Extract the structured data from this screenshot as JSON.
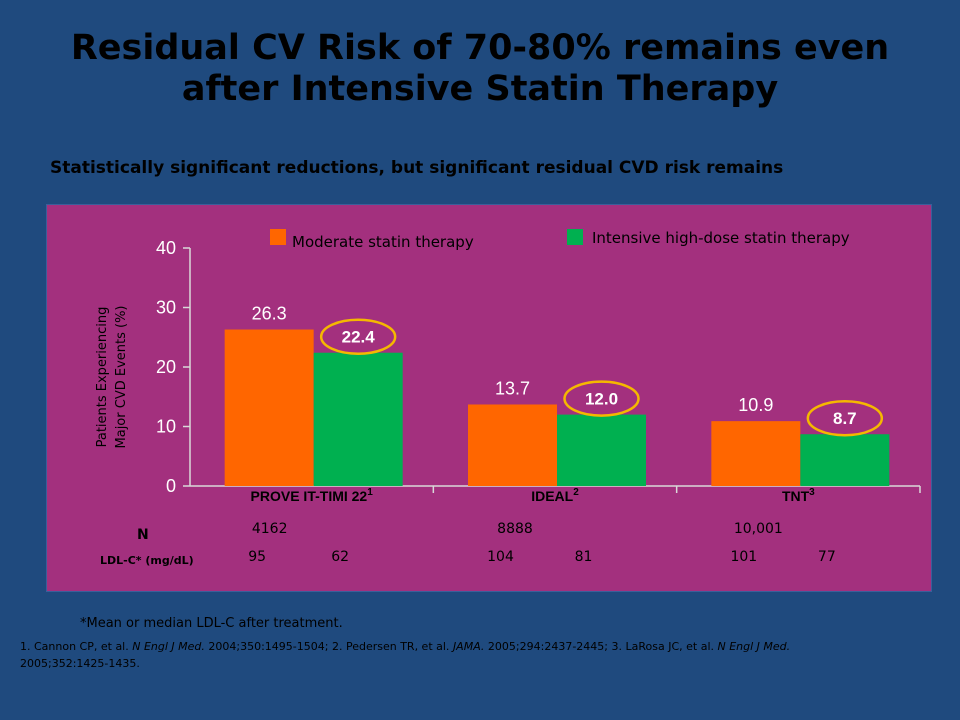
{
  "title": {
    "line1": "Residual CV Risk of 70-80% remains even",
    "line2": "after Intensive Statin Therapy"
  },
  "subtitle": "Statistically significant reductions, but significant residual CVD risk remains",
  "footnote": "*Mean or median LDL-C after treatment.",
  "references": {
    "r1_pre": "1. Cannon CP, et al. ",
    "r1_journal": "N Engl J Med.",
    "r1_post": " 2004;350:1495-1504; 2. Pedersen TR, et al. ",
    "r2_journal": "JAMA.",
    "r2_post": " 2005;294:2437-2445; 3. LaRosa JC, et al. ",
    "r3_journal": "N Engl J Med.",
    "r3_post": " 2005;352:1425-1435."
  },
  "table": {
    "n_label": "N",
    "ldl_label": "LDL-C* (mg/dL)",
    "n_values": [
      "4162",
      "8888",
      "10,001"
    ],
    "ldl_values": [
      [
        "95",
        "62"
      ],
      [
        "104",
        "81"
      ],
      [
        "101",
        "77"
      ]
    ]
  },
  "colors": {
    "moderate": "#ff6600",
    "intensive": "#00b050",
    "circle": "#f5b800",
    "panel": "#a3307e",
    "background": "#1f4a7e"
  },
  "chart_data": {
    "type": "bar",
    "categories": [
      "PROVE IT-TIMI 22",
      "IDEAL",
      "TNT"
    ],
    "category_superscripts": [
      "1",
      "2",
      "3"
    ],
    "series": [
      {
        "name": "Moderate statin therapy",
        "values": [
          26.3,
          13.7,
          10.9
        ],
        "labels": [
          "26.3",
          "13.7",
          "10.9"
        ]
      },
      {
        "name": "Intensive high-dose statin therapy",
        "values": [
          22.4,
          12.0,
          8.7
        ],
        "labels": [
          "22.4",
          "12.0",
          "8.7"
        ]
      }
    ],
    "ylabel_line1": "Patients Experiencing",
    "ylabel_line2": "Major CVD Events (%)",
    "ylim": [
      0,
      40
    ],
    "yticks": [
      0,
      10,
      20,
      30,
      40
    ],
    "ytick_labels": [
      "0",
      "10",
      "20",
      "30",
      "40"
    ],
    "grid": false,
    "legend_position": "top"
  }
}
